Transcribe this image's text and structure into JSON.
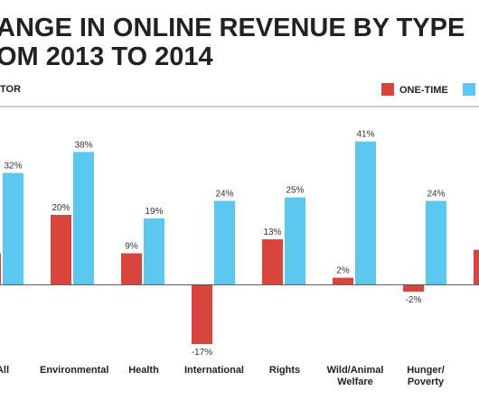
{
  "chart_data": {
    "type": "bar",
    "title": [
      "ANGE IN ONLINE REVENUE BY TYPE",
      "OM 2013 TO 2014"
    ],
    "subtitle": "TOR",
    "categories": [
      "All",
      "Environmental",
      "Health",
      "International",
      "Rights",
      "Wild/Animal Welfare",
      "Hunger/ Poverty",
      null
    ],
    "series": [
      {
        "name": "ONE-TIME",
        "color": "#d9453d",
        "values": [
          9,
          20,
          9,
          -17,
          13,
          2,
          -2,
          10
        ],
        "value_labels": [
          null,
          "20%",
          "9%",
          "-17%",
          "13%",
          "2%",
          "-2%",
          null
        ]
      },
      {
        "color": "#5bc8ef",
        "values": [
          32,
          38,
          19,
          24,
          25,
          41,
          24,
          null
        ],
        "value_labels": [
          "32%",
          "38%",
          "19%",
          "24%",
          "25%",
          "41%",
          "24%",
          null
        ]
      }
    ],
    "ylim": [
      -33,
      51
    ]
  }
}
